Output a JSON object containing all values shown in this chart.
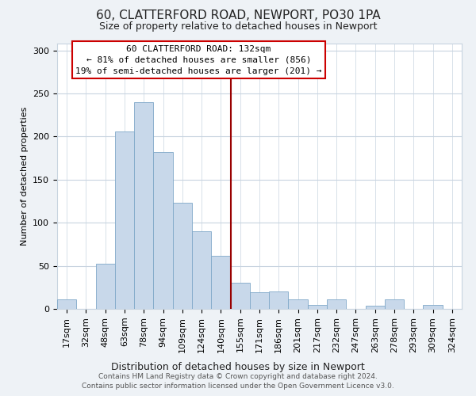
{
  "title": "60, CLATTERFORD ROAD, NEWPORT, PO30 1PA",
  "subtitle": "Size of property relative to detached houses in Newport",
  "xlabel": "Distribution of detached houses by size in Newport",
  "ylabel": "Number of detached properties",
  "bar_labels": [
    "17sqm",
    "32sqm",
    "48sqm",
    "63sqm",
    "78sqm",
    "94sqm",
    "109sqm",
    "124sqm",
    "140sqm",
    "155sqm",
    "171sqm",
    "186sqm",
    "201sqm",
    "217sqm",
    "232sqm",
    "247sqm",
    "263sqm",
    "278sqm",
    "293sqm",
    "309sqm",
    "324sqm"
  ],
  "bar_heights": [
    11,
    0,
    52,
    206,
    240,
    182,
    123,
    90,
    62,
    30,
    19,
    20,
    11,
    5,
    11,
    0,
    4,
    11,
    0,
    5,
    0
  ],
  "bar_color": "#c8d8ea",
  "bar_edge_color": "#7fa8c8",
  "vline_x": 8.5,
  "vline_color": "#990000",
  "annotation_title": "60 CLATTERFORD ROAD: 132sqm",
  "annotation_line1": "← 81% of detached houses are smaller (856)",
  "annotation_line2": "19% of semi-detached houses are larger (201) →",
  "annotation_box_facecolor": "#ffffff",
  "annotation_box_edgecolor": "#cc0000",
  "ylim": [
    0,
    308
  ],
  "yticks": [
    0,
    50,
    100,
    150,
    200,
    250,
    300
  ],
  "footer1": "Contains HM Land Registry data © Crown copyright and database right 2024.",
  "footer2": "Contains public sector information licensed under the Open Government Licence v3.0.",
  "bg_color": "#eef2f6",
  "plot_bg_color": "#ffffff",
  "grid_color": "#c8d4e0",
  "title_fontsize": 11,
  "subtitle_fontsize": 9,
  "ylabel_fontsize": 8,
  "xlabel_fontsize": 9,
  "tick_fontsize": 8,
  "annot_fontsize": 8,
  "footer_fontsize": 6.5
}
